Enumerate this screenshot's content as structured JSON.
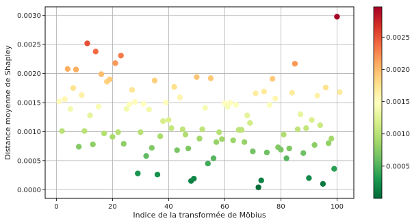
{
  "chart_data": {
    "type": "scatter",
    "xlabel": "Indice de la transformée de Möbius",
    "ylabel": "Distance moyenne de Shapley",
    "xlim": [
      -4,
      106
    ],
    "ylim": [
      -0.00015,
      0.00315
    ],
    "x_ticks": [
      0,
      20,
      40,
      60,
      80,
      100
    ],
    "y_ticks": [
      0.0,
      0.0005,
      0.001,
      0.0015,
      0.002,
      0.0025,
      0.003
    ],
    "y_tick_labels": [
      "0.0000",
      "0.0005",
      "0.0010",
      "0.0015",
      "0.0020",
      "0.0025",
      "0.0030"
    ],
    "grid": true,
    "colormap": "RdYlGn_r",
    "colorbar": {
      "range": [
        0.0,
        0.00297
      ],
      "ticks": [
        0.0005,
        0.001,
        0.0015,
        0.002,
        0.0025
      ],
      "tick_labels": [
        "0.0005",
        "0.0010",
        "0.0015",
        "0.0020",
        "0.0025"
      ]
    },
    "points": [
      [
        1,
        0.00152
      ],
      [
        2,
        0.00101
      ],
      [
        3,
        0.00156
      ],
      [
        4,
        0.00208
      ],
      [
        5,
        0.00139
      ],
      [
        6,
        0.00175
      ],
      [
        7,
        0.00207
      ],
      [
        8,
        0.00074
      ],
      [
        9,
        0.00163
      ],
      [
        10,
        0.00101
      ],
      [
        11,
        0.00252
      ],
      [
        12,
        0.00128
      ],
      [
        13,
        0.00078
      ],
      [
        14,
        0.00238
      ],
      [
        15,
        0.00143
      ],
      [
        16,
        0.00199
      ],
      [
        17,
        0.00097
      ],
      [
        18,
        0.00186
      ],
      [
        19,
        0.0019
      ],
      [
        20,
        0.00091
      ],
      [
        21,
        0.00218
      ],
      [
        22,
        0.00099
      ],
      [
        23,
        0.00231
      ],
      [
        24,
        0.00079
      ],
      [
        25,
        0.00139
      ],
      [
        26,
        0.00147
      ],
      [
        27,
        0.00172
      ],
      [
        28,
        0.00151
      ],
      [
        29,
        0.00028
      ],
      [
        30,
        0.00099
      ],
      [
        31,
        0.00148
      ],
      [
        32,
        0.00058
      ],
      [
        33,
        0.00138
      ],
      [
        34,
        0.00072
      ],
      [
        35,
        0.00188
      ],
      [
        36,
        0.00026
      ],
      [
        37,
        0.00092
      ],
      [
        38,
        0.00118
      ],
      [
        39,
        0.0015
      ],
      [
        40,
        0.0012
      ],
      [
        41,
        0.00106
      ],
      [
        42,
        0.00177
      ],
      [
        43,
        0.00068
      ],
      [
        44,
        0.00159
      ],
      [
        45,
        0.00104
      ],
      [
        46,
        0.00095
      ],
      [
        47,
        0.00071
      ],
      [
        48,
        0.00015
      ],
      [
        49,
        0.00019
      ],
      [
        50,
        0.00194
      ],
      [
        51,
        0.00088
      ],
      [
        52,
        0.00104
      ],
      [
        53,
        0.00141
      ],
      [
        54,
        0.00045
      ],
      [
        55,
        0.00192
      ],
      [
        56,
        0.00054
      ],
      [
        57,
        0.00082
      ],
      [
        58,
        0.00099
      ],
      [
        59,
        0.00087
      ],
      [
        60,
        0.00149
      ],
      [
        61,
        0.00143
      ],
      [
        62,
        0.0015
      ],
      [
        63,
        0.00085
      ],
      [
        64,
        0.00146
      ],
      [
        65,
        0.00103
      ],
      [
        66,
        0.00103
      ],
      [
        67,
        0.00082
      ],
      [
        68,
        0.00128
      ],
      [
        69,
        0.00115
      ],
      [
        70,
        0.00066
      ],
      [
        71,
        0.00166
      ],
      [
        72,
        4e-05
      ],
      [
        73,
        0.00016
      ],
      [
        74,
        0.00169
      ],
      [
        75,
        0.00064
      ],
      [
        76,
        0.00146
      ],
      [
        77,
        0.00191
      ],
      [
        78,
        0.00157
      ],
      [
        79,
        0.00073
      ],
      [
        80,
        0.00069
      ],
      [
        81,
        0.00095
      ],
      [
        82,
        0.00054
      ],
      [
        83,
        0.00071
      ],
      [
        84,
        0.00167
      ],
      [
        85,
        0.00217
      ],
      [
        86,
        0.00104
      ],
      [
        87,
        0.0013
      ],
      [
        88,
        0.00063
      ],
      [
        89,
        0.00106
      ],
      [
        90,
        0.0002
      ],
      [
        91,
        0.0012
      ],
      [
        92,
        0.00077
      ],
      [
        93,
        0.00162
      ],
      [
        94,
        0.00111
      ],
      [
        95,
        0.0001
      ],
      [
        96,
        0.00176
      ],
      [
        97,
        0.0008
      ],
      [
        98,
        0.00088
      ],
      [
        99,
        0.00036
      ],
      [
        100,
        0.00298
      ],
      [
        101,
        0.00168
      ]
    ]
  }
}
